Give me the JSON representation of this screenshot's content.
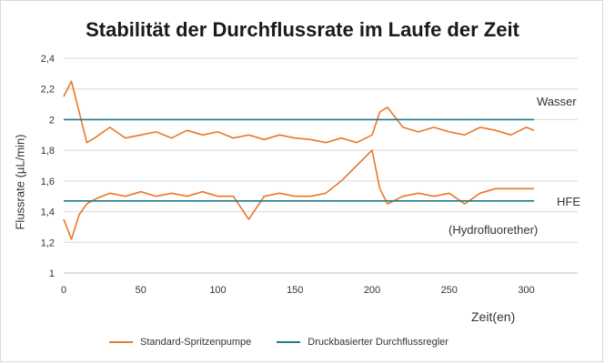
{
  "chart_data": {
    "type": "line",
    "title": "Stabilität der Durchflussrate im Laufe der Zeit",
    "xlabel": "Zeit(en)",
    "ylabel": "Flussrate (µL/min)",
    "xlim": [
      0,
      300
    ],
    "ylim": [
      1,
      2.4
    ],
    "x_ticks": [
      "0",
      "50",
      "100",
      "150",
      "200",
      "250",
      "300"
    ],
    "y_ticks": [
      "1",
      "1,2",
      "1,4",
      "1,6",
      "1,8",
      "2",
      "2,2",
      "2,4"
    ],
    "grid": "horizontal",
    "legend_position": "bottom",
    "annotations": {
      "wasser": "Wasser",
      "hfe": "HFE",
      "hfe_full": "(Hydrofluorether)"
    },
    "colors": {
      "standard": "#e8782a",
      "druck": "#1f7a8c"
    },
    "series": [
      {
        "name": "Standard-Spritzenpumpe",
        "fluid": "Wasser",
        "x": [
          0,
          5,
          10,
          15,
          20,
          30,
          40,
          50,
          60,
          70,
          80,
          90,
          100,
          110,
          120,
          130,
          140,
          150,
          160,
          170,
          180,
          190,
          200,
          205,
          210,
          220,
          230,
          240,
          250,
          260,
          270,
          280,
          290,
          300,
          305
        ],
        "values": [
          2.15,
          2.25,
          2.05,
          1.85,
          1.88,
          1.95,
          1.88,
          1.9,
          1.92,
          1.88,
          1.93,
          1.9,
          1.92,
          1.88,
          1.9,
          1.87,
          1.9,
          1.88,
          1.87,
          1.85,
          1.88,
          1.85,
          1.9,
          2.05,
          2.08,
          1.95,
          1.92,
          1.95,
          1.92,
          1.9,
          1.95,
          1.93,
          1.9,
          1.95,
          1.93
        ]
      },
      {
        "name": "Druckbasierter Durchflussregler",
        "fluid": "Wasser",
        "x": [
          0,
          25,
          50,
          75,
          100,
          125,
          150,
          175,
          200,
          225,
          250,
          275,
          300,
          305
        ],
        "values": [
          2.0,
          2.0,
          2.0,
          2.0,
          2.0,
          2.0,
          2.0,
          2.0,
          2.0,
          2.0,
          2.0,
          2.0,
          2.0,
          2.0
        ]
      },
      {
        "name": "Standard-Spritzenpumpe",
        "fluid": "HFE",
        "x": [
          0,
          5,
          10,
          15,
          20,
          30,
          40,
          50,
          60,
          70,
          80,
          90,
          100,
          110,
          120,
          130,
          140,
          150,
          160,
          170,
          180,
          190,
          200,
          205,
          210,
          220,
          230,
          240,
          250,
          260,
          270,
          280,
          290,
          300,
          305
        ],
        "values": [
          1.35,
          1.22,
          1.38,
          1.45,
          1.48,
          1.52,
          1.5,
          1.53,
          1.5,
          1.52,
          1.5,
          1.53,
          1.5,
          1.5,
          1.35,
          1.5,
          1.52,
          1.5,
          1.5,
          1.52,
          1.6,
          1.7,
          1.8,
          1.55,
          1.45,
          1.5,
          1.52,
          1.5,
          1.52,
          1.45,
          1.52,
          1.55,
          1.55,
          1.55,
          1.55
        ]
      },
      {
        "name": "Druckbasierter Durchflussregler",
        "fluid": "HFE",
        "x": [
          0,
          25,
          50,
          75,
          100,
          125,
          150,
          175,
          200,
          225,
          250,
          275,
          300,
          305
        ],
        "values": [
          1.47,
          1.47,
          1.47,
          1.47,
          1.47,
          1.47,
          1.47,
          1.47,
          1.47,
          1.47,
          1.47,
          1.47,
          1.47,
          1.47
        ]
      }
    ]
  },
  "legend": {
    "standard_label": "Standard-Spritzenpumpe",
    "druck_label": "Druckbasierter Durchflussregler"
  }
}
